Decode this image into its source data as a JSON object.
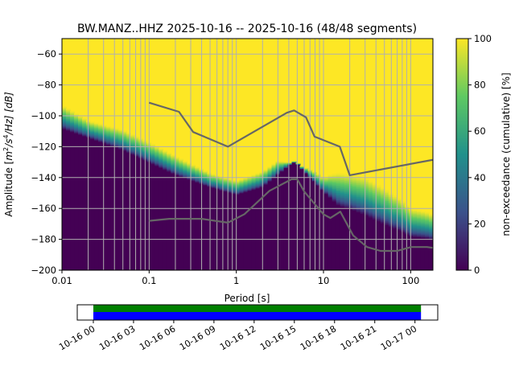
{
  "chart_data": {
    "type": "heatmap",
    "title": "BW.MANZ..HHZ   2025-10-16 -- 2025-10-16  (48/48 segments)",
    "xlabel": "Period [s]",
    "ylabel_prefix": "Amplitude [",
    "ylabel_unit_base": "m",
    "ylabel_unit_exp1": "2",
    "ylabel_unit_mid": "/s",
    "ylabel_unit_exp2": "4",
    "ylabel_unit_tail": "/Hz] [dB]",
    "x_scale": "log",
    "xlim": [
      0.01,
      180
    ],
    "ylim": [
      -200,
      -50
    ],
    "x_ticks": [
      {
        "value": 0.01,
        "label": "0.01"
      },
      {
        "value": 0.1,
        "label": "0.1"
      },
      {
        "value": 1,
        "label": "1"
      },
      {
        "value": 10,
        "label": "10"
      },
      {
        "value": 100,
        "label": "100"
      }
    ],
    "y_ticks": [
      {
        "value": -60,
        "label": "−60"
      },
      {
        "value": -80,
        "label": "−80"
      },
      {
        "value": -100,
        "label": "−100"
      },
      {
        "value": -120,
        "label": "−120"
      },
      {
        "value": -140,
        "label": "−140"
      },
      {
        "value": -160,
        "label": "−160"
      },
      {
        "value": -180,
        "label": "−180"
      },
      {
        "value": -200,
        "label": "−200"
      }
    ],
    "grid": true,
    "colorbar": {
      "label": "non-exceedance (cumulative) [%]",
      "range": [
        0,
        100
      ],
      "ticks": [
        {
          "value": 0,
          "label": "0"
        },
        {
          "value": 20,
          "label": "20"
        },
        {
          "value": 40,
          "label": "40"
        },
        {
          "value": 60,
          "label": "60"
        },
        {
          "value": 80,
          "label": "80"
        },
        {
          "value": 100,
          "label": "100"
        }
      ],
      "colormap": [
        "#440154",
        "#3b528b",
        "#21918c",
        "#5ec962",
        "#fde725"
      ]
    },
    "envelope_lower": {
      "period": [
        0.01,
        0.02,
        0.05,
        0.1,
        0.2,
        0.5,
        1,
        2,
        3,
        4,
        4.5,
        5,
        6,
        8,
        10,
        15,
        20,
        30,
        50,
        80,
        100,
        150,
        180
      ],
      "db": [
        -108,
        -114,
        -122,
        -130,
        -138,
        -146,
        -151,
        -146,
        -138,
        -132,
        -130,
        -131,
        -136,
        -143,
        -149,
        -158,
        -160,
        -164,
        -170,
        -175,
        -178,
        -179,
        -180
      ]
    },
    "envelope_upper": {
      "period": [
        0.01,
        0.02,
        0.05,
        0.1,
        0.2,
        0.5,
        1,
        2,
        3,
        4,
        4.5,
        5,
        6,
        8,
        10,
        12,
        15,
        20,
        30,
        50,
        80,
        100,
        150,
        180
      ],
      "db": [
        -93,
        -103,
        -109,
        -117,
        -126,
        -137,
        -142,
        -136,
        -129,
        -130,
        -130,
        -131,
        -133,
        -136,
        -140,
        -138,
        -137,
        -138,
        -140,
        -147,
        -155,
        -160,
        -162,
        -164
      ]
    },
    "nhnm": {
      "period": [
        0.1,
        0.22,
        0.32,
        0.8,
        3.8,
        4.6,
        6.3,
        7.9,
        15.4,
        20,
        180
      ],
      "db": [
        -91.5,
        -97.4,
        -110.5,
        -120,
        -98,
        -96.5,
        -101,
        -113.5,
        -120,
        -138.5,
        -128.5
      ]
    },
    "nlnm": {
      "period": [
        0.1,
        0.17,
        0.4,
        0.8,
        1.24,
        2.4,
        4.3,
        5,
        6,
        10,
        12,
        15.6,
        21.9,
        31.6,
        45,
        70,
        101,
        154,
        180
      ],
      "db": [
        -168,
        -166.7,
        -166.7,
        -169.2,
        -163.7,
        -148.6,
        -141.1,
        -141.1,
        -149,
        -163.8,
        -166.2,
        -162.1,
        -177.5,
        -185,
        -187.5,
        -187.5,
        -185,
        -185,
        -185.5
      ]
    },
    "timeline": {
      "tick_labels": [
        "10-16 00",
        "10-16 03",
        "10-16 06",
        "10-16 09",
        "10-16 12",
        "10-16 15",
        "10-16 18",
        "10-16 21",
        "10-17 00"
      ],
      "tick_hours": [
        0,
        3,
        6,
        9,
        12,
        15,
        18,
        21,
        24
      ],
      "range_hours": [
        -1.2,
        25.7
      ],
      "coverage_hours": [
        0,
        24.45
      ],
      "colors": {
        "top": "#008000",
        "bottom": "#0000ff"
      }
    }
  }
}
